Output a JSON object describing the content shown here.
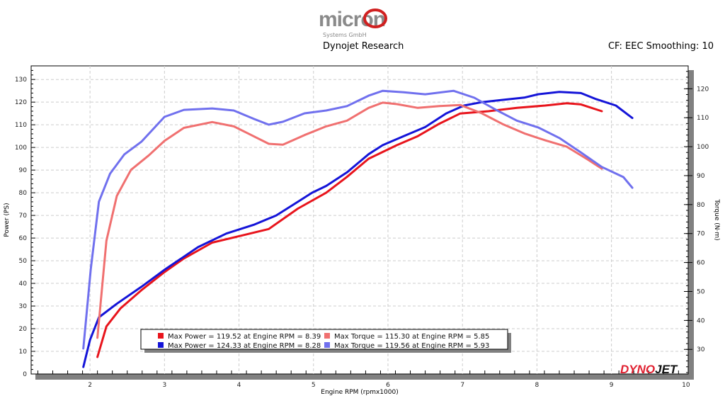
{
  "header": {
    "logo_text": "micron",
    "logo_sub": "Systems GmbH",
    "title": "Dynojet Research",
    "settings": "CF: EEC Smoothing: 10"
  },
  "footer_logo": "DYNOJET",
  "chart_data": {
    "type": "line",
    "xlabel": "Engine RPM (rpmx1000)",
    "ylabel": "Power (PS)",
    "y2label": "Torque (N·m)",
    "xlim": [
      1.21,
      10.03
    ],
    "ylim": [
      0,
      136
    ],
    "y2lim": [
      21.5,
      127.9
    ],
    "xticks": [
      2,
      3,
      4,
      5,
      6,
      7,
      8,
      9,
      10
    ],
    "yticks": [
      0,
      10,
      20,
      30,
      40,
      50,
      60,
      70,
      80,
      90,
      100,
      110,
      120,
      130
    ],
    "y2ticks": [
      30,
      40,
      50,
      60,
      70,
      80,
      90,
      100,
      110,
      120
    ],
    "grid": true,
    "legend_position": "bottom-center",
    "series": [
      {
        "axis": "left",
        "color": "#e8141c",
        "x": [
          2.1,
          2.22,
          2.41,
          2.69,
          3.0,
          3.26,
          3.64,
          4.02,
          4.4,
          4.79,
          5.17,
          5.45,
          5.74,
          6.12,
          6.4,
          6.69,
          6.97,
          7.35,
          7.73,
          8.11,
          8.4,
          8.59,
          8.87
        ],
        "y": [
          7.5,
          21,
          29,
          37,
          45,
          51,
          58,
          61,
          64,
          73,
          80,
          87,
          95,
          101,
          105,
          110.5,
          115,
          116,
          117.5,
          118.5,
          119.5,
          119,
          116
        ]
      },
      {
        "axis": "left",
        "color": "#1414d8",
        "x": [
          1.91,
          2.0,
          2.12,
          2.36,
          2.69,
          3.0,
          3.45,
          3.83,
          4.21,
          4.5,
          4.79,
          4.98,
          5.17,
          5.45,
          5.74,
          5.93,
          6.21,
          6.5,
          6.78,
          7.02,
          7.26,
          7.54,
          7.83,
          8.02,
          8.3,
          8.59,
          8.78,
          9.06,
          9.28
        ],
        "y": [
          3.1,
          15,
          25,
          31,
          38.5,
          46,
          56,
          62,
          66,
          70,
          76,
          80,
          83,
          89,
          97,
          101,
          105,
          109,
          115,
          118.5,
          120,
          121,
          122,
          123.5,
          124.5,
          124,
          121.5,
          118.5,
          113
        ]
      },
      {
        "axis": "right",
        "color": "#f07070",
        "x": [
          2.1,
          2.22,
          2.36,
          2.55,
          2.79,
          3.0,
          3.26,
          3.64,
          3.93,
          4.12,
          4.4,
          4.59,
          4.88,
          5.17,
          5.45,
          5.74,
          5.93,
          6.12,
          6.4,
          6.69,
          6.97,
          7.26,
          7.54,
          7.83,
          8.11,
          8.4,
          8.68,
          8.87
        ],
        "y": [
          34,
          67.5,
          83,
          92,
          97,
          102,
          106.5,
          108.5,
          107,
          104.6,
          101,
          100.7,
          104,
          107,
          109,
          113.4,
          115.2,
          114.7,
          113.4,
          114,
          114.4,
          111.5,
          107.8,
          104.6,
          102.2,
          100,
          95.6,
          92.4
        ]
      },
      {
        "axis": "right",
        "color": "#7070ee",
        "x": [
          1.91,
          2.01,
          2.12,
          2.27,
          2.46,
          2.69,
          3.0,
          3.26,
          3.64,
          3.93,
          4.21,
          4.4,
          4.59,
          4.88,
          5.17,
          5.45,
          5.74,
          5.93,
          6.21,
          6.5,
          6.88,
          7.16,
          7.45,
          7.73,
          8.02,
          8.3,
          8.59,
          8.87,
          9.16,
          9.28
        ],
        "y": [
          30.3,
          57.7,
          81,
          90.7,
          97.3,
          101.7,
          110.3,
          112.7,
          113.2,
          112.5,
          109.5,
          107.6,
          108.6,
          111.5,
          112.5,
          114,
          117.6,
          119.3,
          118.8,
          118.1,
          119.3,
          116.9,
          112.7,
          109,
          106.6,
          103,
          98,
          93,
          89.5,
          85.8
        ]
      }
    ],
    "legend": [
      {
        "color": "#e8141c",
        "text": "Max Power = 119.52 at Engine RPM = 8.39"
      },
      {
        "color": "#f07070",
        "text": "Max Torque = 115.30 at Engine RPM = 5.85"
      },
      {
        "color": "#1414d8",
        "text": "Max Power = 124.33 at Engine RPM = 8.28"
      },
      {
        "color": "#7070ee",
        "text": "Max Torque = 119.56 at Engine RPM = 5.93"
      }
    ]
  }
}
